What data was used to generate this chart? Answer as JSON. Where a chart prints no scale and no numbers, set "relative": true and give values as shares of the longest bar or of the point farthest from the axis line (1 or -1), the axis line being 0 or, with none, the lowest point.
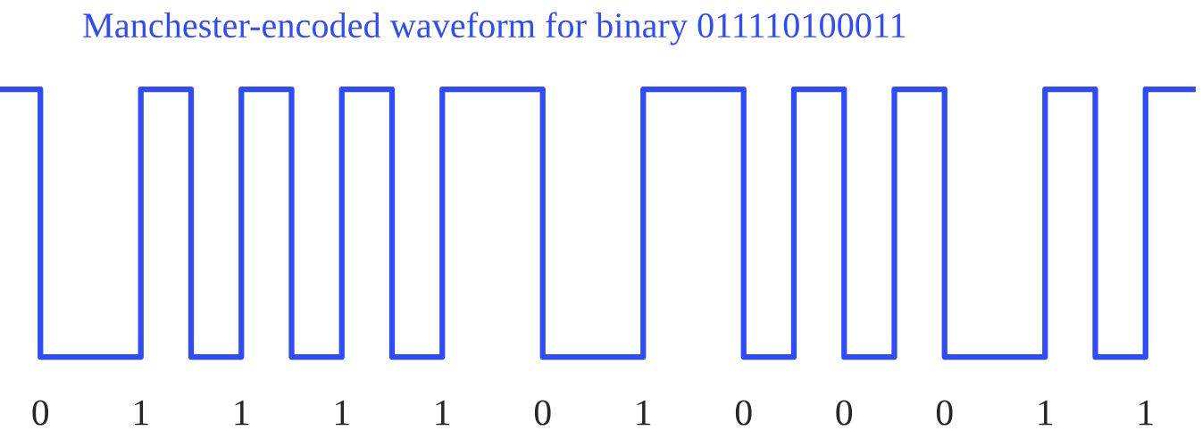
{
  "chart_data": {
    "type": "step",
    "title": "Manchester-encoded waveform for binary 011110100011",
    "relative": true,
    "categories": [
      null,
      "0",
      null,
      "1",
      null,
      "1",
      null,
      "1",
      null,
      "1",
      null,
      "0",
      null,
      "1",
      null,
      "0",
      null,
      "0",
      null,
      "0",
      null,
      "1",
      null,
      "1",
      null
    ],
    "series": [
      {
        "color": "#2f4bff",
        "values": [
          1,
          0,
          0,
          1,
          0,
          1,
          0,
          1,
          0,
          1,
          1,
          0,
          0,
          1,
          1,
          0,
          1,
          0,
          1,
          0,
          0,
          1,
          0,
          1,
          1
        ]
      }
    ]
  }
}
